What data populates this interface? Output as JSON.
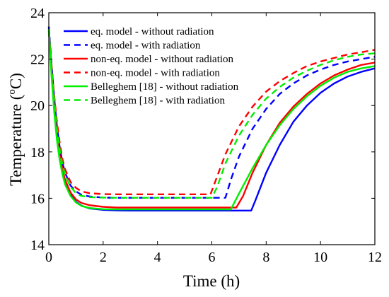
{
  "chart_data": {
    "type": "line",
    "title": "",
    "xlabel": "Time (h)",
    "ylabel_main": "Temperature (",
    "ylabel_sup": "o",
    "ylabel_unit": "C)",
    "xlim": [
      0,
      12
    ],
    "ylim": [
      14,
      24
    ],
    "xticks": [
      0,
      2,
      4,
      6,
      8,
      10,
      12
    ],
    "yticks": [
      14,
      16,
      18,
      20,
      22,
      24
    ],
    "grid": false,
    "legend_position": "top-right",
    "series": [
      {
        "name": "eq. model - without radiation",
        "color": "#0000ff",
        "dash": false,
        "x": [
          0,
          0.1,
          0.2,
          0.3,
          0.4,
          0.5,
          0.6,
          0.8,
          1.0,
          1.2,
          1.5,
          2.0,
          2.5,
          3.0,
          5.0,
          7.0,
          7.45,
          7.6,
          8.0,
          8.5,
          9.0,
          9.5,
          10.0,
          10.5,
          11.0,
          11.5,
          12.0
        ],
        "y": [
          23.4,
          21.5,
          19.9,
          18.7,
          17.8,
          17.2,
          16.75,
          16.15,
          15.85,
          15.68,
          15.56,
          15.5,
          15.48,
          15.47,
          15.47,
          15.47,
          15.47,
          15.9,
          17.1,
          18.3,
          19.3,
          20.0,
          20.55,
          20.95,
          21.25,
          21.45,
          21.6
        ]
      },
      {
        "name": "eq. model - with radiation",
        "color": "#0000ff",
        "dash": true,
        "x": [
          0,
          0.1,
          0.2,
          0.3,
          0.4,
          0.5,
          0.6,
          0.8,
          1.0,
          1.2,
          1.5,
          2.0,
          2.5,
          3.0,
          5.0,
          6.0,
          6.5,
          6.7,
          7.0,
          7.5,
          8.0,
          8.5,
          9.0,
          9.5,
          10.0,
          10.5,
          11.0,
          11.5,
          12.0
        ],
        "y": [
          23.4,
          21.8,
          20.3,
          19.1,
          18.2,
          17.55,
          17.1,
          16.55,
          16.3,
          16.15,
          16.08,
          16.03,
          16.02,
          16.02,
          16.02,
          16.02,
          16.02,
          16.8,
          17.8,
          19.0,
          19.85,
          20.5,
          20.95,
          21.3,
          21.55,
          21.75,
          21.9,
          22.0,
          22.1
        ]
      },
      {
        "name": "non-eq. model - without radiation",
        "color": "#ff0000",
        "dash": false,
        "x": [
          0,
          0.1,
          0.2,
          0.3,
          0.4,
          0.5,
          0.6,
          0.8,
          1.0,
          1.2,
          1.5,
          2.0,
          2.5,
          3.0,
          5.0,
          6.9,
          7.15,
          7.5,
          8.0,
          8.5,
          9.0,
          9.5,
          10.0,
          10.5,
          11.0,
          11.5,
          12.0
        ],
        "y": [
          23.3,
          21.5,
          19.9,
          18.7,
          17.85,
          17.25,
          16.8,
          16.25,
          15.95,
          15.8,
          15.7,
          15.63,
          15.6,
          15.6,
          15.6,
          15.6,
          16.1,
          17.1,
          18.3,
          19.25,
          19.95,
          20.5,
          20.95,
          21.3,
          21.55,
          21.75,
          21.85
        ]
      },
      {
        "name": "non-eq. model - with radiation",
        "color": "#ff0000",
        "dash": true,
        "x": [
          0,
          0.1,
          0.2,
          0.3,
          0.4,
          0.5,
          0.6,
          0.8,
          1.0,
          1.2,
          1.5,
          2.0,
          2.5,
          3.0,
          5.0,
          5.95,
          6.15,
          6.5,
          7.0,
          7.5,
          8.0,
          8.5,
          9.0,
          9.5,
          10.0,
          10.5,
          11.0,
          11.5,
          12.0
        ],
        "y": [
          23.2,
          21.8,
          20.4,
          19.3,
          18.4,
          17.7,
          17.25,
          16.7,
          16.45,
          16.3,
          16.22,
          16.18,
          16.17,
          16.17,
          16.17,
          16.17,
          16.8,
          17.9,
          19.1,
          19.95,
          20.6,
          21.05,
          21.4,
          21.7,
          21.9,
          22.05,
          22.2,
          22.3,
          22.4
        ]
      },
      {
        "name": "Belleghem [18] - without radiation",
        "color": "#00ee00",
        "dash": false,
        "x": [
          0,
          0.1,
          0.2,
          0.3,
          0.4,
          0.5,
          0.6,
          0.8,
          1.0,
          1.2,
          1.5,
          2.0,
          2.5,
          3.0,
          5.0,
          6.7,
          7.0,
          7.5,
          8.0,
          8.5,
          9.0,
          9.5,
          10.0,
          10.5,
          11.0,
          11.5,
          12.0
        ],
        "y": [
          23.3,
          21.3,
          19.7,
          18.5,
          17.65,
          17.05,
          16.6,
          16.1,
          15.82,
          15.67,
          15.58,
          15.53,
          15.52,
          15.52,
          15.52,
          15.52,
          16.2,
          17.3,
          18.3,
          19.15,
          19.85,
          20.4,
          20.85,
          21.2,
          21.45,
          21.6,
          21.7
        ]
      },
      {
        "name": "Belleghem [18] - with radiation",
        "color": "#00ee00",
        "dash": true,
        "x": [
          0,
          0.1,
          0.2,
          0.3,
          0.4,
          0.5,
          0.6,
          0.8,
          1.0,
          1.2,
          1.5,
          2.0,
          2.5,
          3.0,
          5.0,
          6.0,
          6.2,
          6.5,
          7.0,
          7.5,
          8.0,
          8.5,
          9.0,
          9.5,
          10.0,
          10.5,
          11.0,
          11.5,
          12.0
        ],
        "y": [
          23.2,
          21.6,
          20.2,
          19.0,
          18.1,
          17.45,
          17.0,
          16.5,
          16.22,
          16.1,
          16.05,
          16.03,
          16.02,
          16.02,
          16.02,
          16.02,
          16.5,
          17.5,
          18.7,
          19.6,
          20.3,
          20.8,
          21.2,
          21.5,
          21.75,
          21.95,
          22.1,
          22.2,
          22.25
        ]
      }
    ]
  }
}
